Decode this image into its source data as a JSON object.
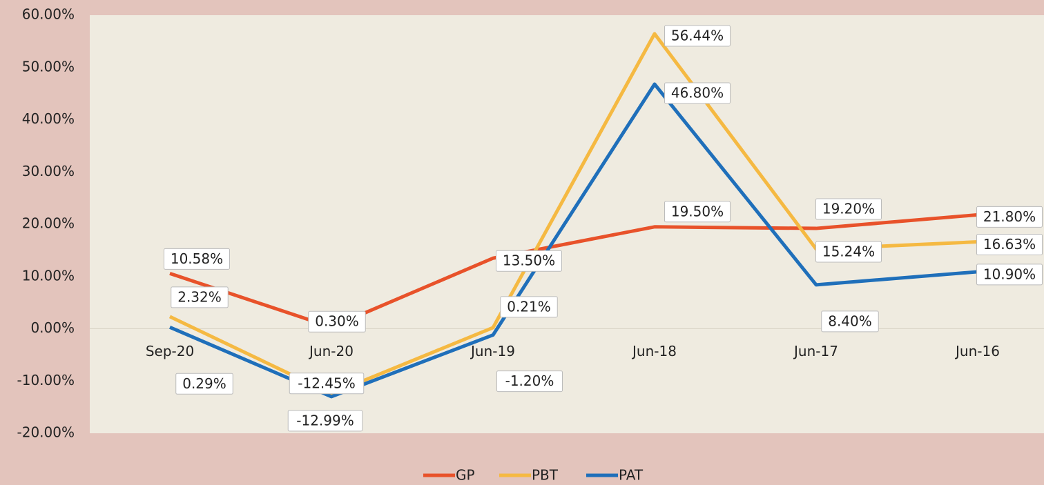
{
  "chart_data": {
    "type": "line",
    "categories": [
      "Sep-20",
      "Jun-20",
      "Jun-19",
      "Jun-18",
      "Jun-17",
      "Jun-16"
    ],
    "series": [
      {
        "name": "GP",
        "color": "#e8522a",
        "values": [
          10.58,
          0.3,
          13.5,
          19.5,
          19.2,
          21.8
        ],
        "value_labels": [
          "10.58%",
          "0.30%",
          "13.50%",
          "19.50%",
          "19.20%",
          "21.80%"
        ]
      },
      {
        "name": "PBT",
        "color": "#f5b942",
        "values": [
          2.32,
          -12.45,
          0.21,
          56.44,
          15.24,
          16.63
        ],
        "value_labels": [
          "2.32%",
          "-12.45%",
          "0.21%",
          "56.44%",
          "15.24%",
          "16.63%"
        ]
      },
      {
        "name": "PAT",
        "color": "#1f6fba",
        "values": [
          0.29,
          -12.99,
          -1.2,
          46.8,
          8.4,
          10.9
        ],
        "value_labels": [
          "0.29%",
          "-12.99%",
          "-1.20%",
          "46.80%",
          "8.40%",
          "10.90%"
        ]
      }
    ],
    "ylim": [
      -20,
      60
    ],
    "yticks": [
      {
        "value": -20,
        "label": "-20.00%"
      },
      {
        "value": -10,
        "label": "-10.00%"
      },
      {
        "value": 0,
        "label": "0.00%"
      },
      {
        "value": 10,
        "label": "10.00%"
      },
      {
        "value": 20,
        "label": "20.00%"
      },
      {
        "value": 30,
        "label": "30.00%"
      },
      {
        "value": 40,
        "label": "40.00%"
      },
      {
        "value": 50,
        "label": "50.00%"
      },
      {
        "value": 60,
        "label": "60.00%"
      }
    ],
    "grid": false,
    "legend": "bottom"
  }
}
